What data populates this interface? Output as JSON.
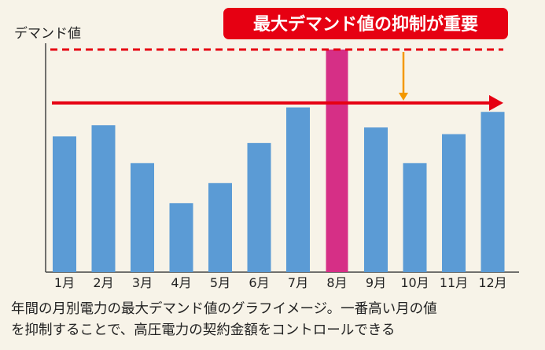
{
  "chart_data": {
    "type": "bar",
    "ylabel": "デマンド値",
    "categories": [
      "1月",
      "2月",
      "3月",
      "4月",
      "5月",
      "6月",
      "7月",
      "8月",
      "9月",
      "10月",
      "11月",
      "12月"
    ],
    "values": [
      61,
      66,
      49,
      31,
      40,
      58,
      74,
      100,
      65,
      49,
      62,
      72
    ],
    "highlight_index": 7,
    "ylim": [
      0,
      100
    ],
    "grid": false,
    "annotation": "最大デマンド値の抑制が重要",
    "reference_line_value": 100,
    "target_line_value": 76
  },
  "colors": {
    "bar": "#5b9bd5",
    "bar_highlight": "#d62f86",
    "reference_line": "#e60012",
    "target_arrow": "#e60012",
    "small_arrow": "#f39800",
    "badge_bg": "#e60012",
    "badge_text": "#ffffff",
    "axis": "#444444",
    "background": "#f7f3e8"
  },
  "caption": {
    "line1": "年間の月別電力の最大デマンド値のグラフイメージ。一番高い月の値",
    "line2": "を抑制することで、高圧電力の契約金額をコントロールできる"
  }
}
